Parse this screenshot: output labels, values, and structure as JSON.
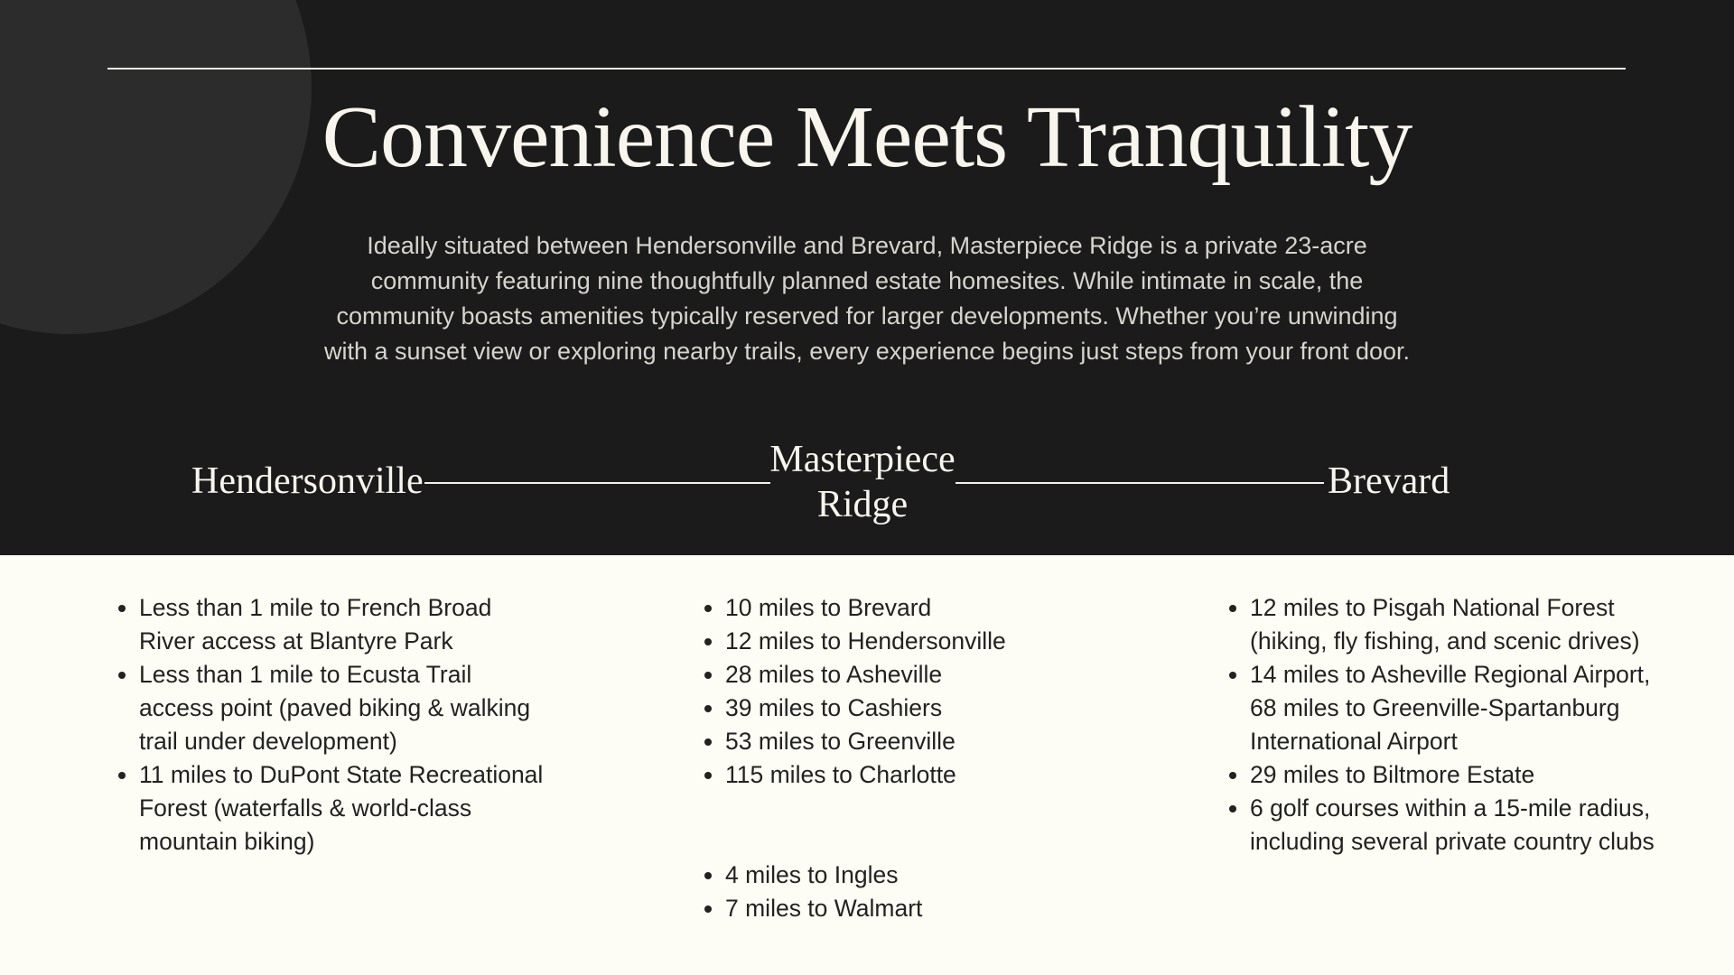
{
  "title": "Convenience Meets Tranquility",
  "intro_lines": [
    "Ideally situated between Hendersonville and Brevard, Masterpiece Ridge is a private 23-acre",
    "community featuring nine thoughtfully planned estate homesites.  While intimate in scale, the",
    "community boasts amenities typically reserved for larger developments.  Whether you’re unwinding",
    "with a sunset view or exploring nearby trails, every experience begins just steps from your front door."
  ],
  "route": {
    "left": "Hendersonville",
    "center_line1": "Masterpiece",
    "center_line2": "Ridge",
    "right": "Brevard"
  },
  "columns": {
    "hendersonville": [
      "Less than 1 mile to French Broad River access at Blantyre Park",
      "Less than 1 mile to Ecusta Trail access point (paved biking & walking trail under development)",
      "11 miles to DuPont State Recreational Forest (waterfalls & world-class mountain biking)"
    ],
    "masterpiece": [
      "10 miles to Brevard",
      "12 miles to Hendersonville",
      "28 miles to Asheville",
      "39 miles to Cashiers",
      "53 miles to Greenville",
      "115 miles to Charlotte"
    ],
    "masterpiece_shopping": [
      "4 miles to Ingles",
      "7 miles to Walmart"
    ],
    "brevard": [
      "12 miles to Pisgah National Forest (hiking, fly fishing, and scenic drives)",
      "14 miles to Asheville Regional Airport, 68 miles to Greenville-Spartanburg International Airport",
      "29 miles to Biltmore Estate",
      "6 golf courses within a 15-mile radius, including several private country clubs"
    ]
  },
  "colors": {
    "dark": "#1c1b1b",
    "circle": "#2d2c2c",
    "cream": "#fdfcf5",
    "text": "#222222"
  }
}
